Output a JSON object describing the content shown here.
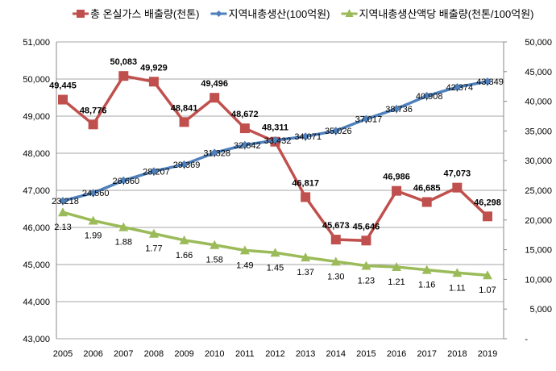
{
  "chart_data": {
    "type": "line",
    "categories": [
      "2005",
      "2006",
      "2007",
      "2008",
      "2009",
      "2010",
      "2011",
      "2012",
      "2013",
      "2014",
      "2015",
      "2016",
      "2017",
      "2018",
      "2019"
    ],
    "series": [
      {
        "name": "총 온실가스 배출량(천톤)",
        "axis": "left",
        "color": "#c0504d",
        "marker": "square",
        "values": [
          49445,
          48776,
          50083,
          49929,
          48841,
          49496,
          48672,
          48311,
          46817,
          45673,
          45646,
          46986,
          46685,
          47073,
          46298
        ],
        "labels": [
          "49,445",
          "48,776",
          "50,083",
          "49,929",
          "48,841",
          "49,496",
          "48,672",
          "48,311",
          "46,817",
          "45,673",
          "45,646",
          "46,986",
          "46,685",
          "47,073",
          "46,298"
        ]
      },
      {
        "name": "지역내총생산(100억원)",
        "axis": "right",
        "color": "#4f81bd",
        "marker": "diamond",
        "values": [
          23218,
          24560,
          26660,
          28207,
          29369,
          31328,
          32642,
          33432,
          34071,
          35026,
          37017,
          38736,
          40908,
          42374,
          43349
        ],
        "labels": [
          "23,218",
          "24,560",
          "26,660",
          "28,207",
          "29,369",
          "31,328",
          "32,642",
          "33,432",
          "34,071",
          "35,026",
          "37,017",
          "38,736",
          "40,908",
          "42,374",
          "43,349"
        ]
      },
      {
        "name": "지역내총생산액당 배출량(천톤/100억원)",
        "axis": "right",
        "scale": 10000,
        "color": "#9bbb59",
        "marker": "triangle",
        "values": [
          2.13,
          1.99,
          1.88,
          1.77,
          1.66,
          1.58,
          1.49,
          1.45,
          1.37,
          1.3,
          1.23,
          1.21,
          1.16,
          1.11,
          1.07
        ],
        "labels": [
          "2.13",
          "1.99",
          "1.88",
          "1.77",
          "1.66",
          "1.58",
          "1.49",
          "1.45",
          "1.37",
          "1.30",
          "1.23",
          "1.21",
          "1.16",
          "1.11",
          "1.07"
        ]
      }
    ],
    "left_axis": {
      "ylim": [
        43000,
        51000
      ],
      "ticks": [
        "43,000",
        "44,000",
        "45,000",
        "46,000",
        "47,000",
        "48,000",
        "49,000",
        "50,000",
        "51,000"
      ]
    },
    "right_axis": {
      "ylim": [
        0,
        50000
      ],
      "ticks": [
        "-",
        "5,000",
        "10,000",
        "15,000",
        "20,000",
        "25,000",
        "30,000",
        "35,000",
        "40,000",
        "45,000",
        "50,000"
      ]
    },
    "grid": true,
    "legend": "top"
  }
}
